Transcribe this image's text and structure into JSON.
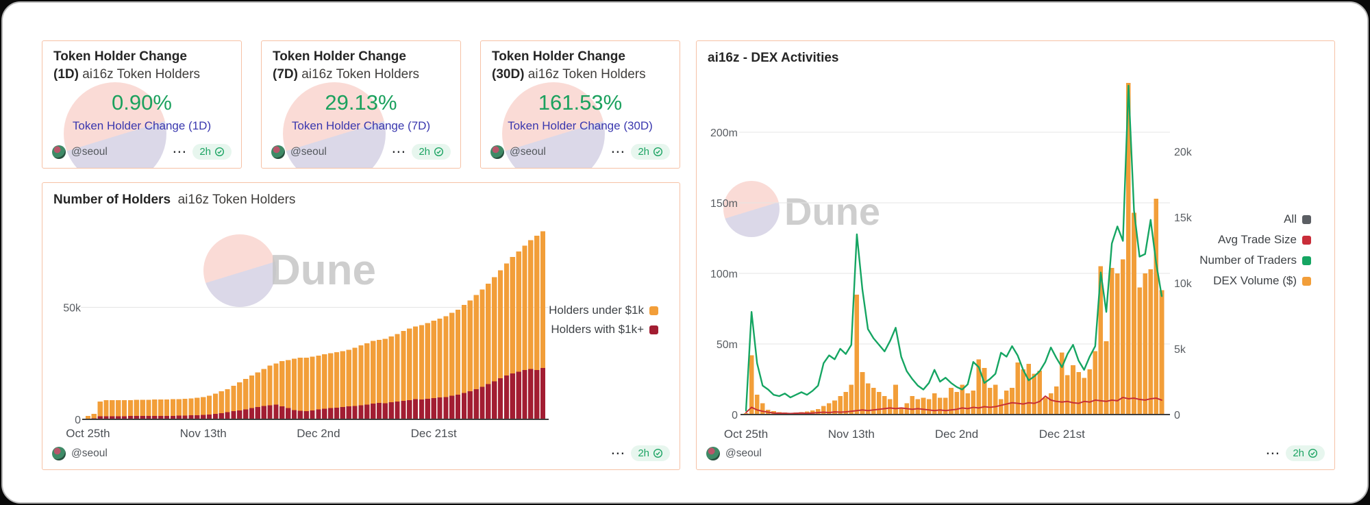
{
  "footer": {
    "user": "@seoul",
    "menu": "⋯",
    "badge": "2h"
  },
  "watermark": {
    "label": "Dune"
  },
  "cards": {
    "change_1d": {
      "title": "Token Holder Change",
      "period": "(1D)",
      "subtitle": "ai16z Token Holders",
      "value": "0.90%",
      "caption": "Token Holder Change (1D)"
    },
    "change_7d": {
      "title": "Token Holder Change",
      "period": "(7D)",
      "subtitle": "ai16z Token Holders",
      "value": "29.13%",
      "caption": "Token Holder Change (7D)"
    },
    "change_30d": {
      "title": "Token Holder Change",
      "period": "(30D)",
      "subtitle": "ai16z Token Holders",
      "value": "161.53%",
      "caption": "Token Holder Change (30D)"
    }
  },
  "holders_chart": {
    "title": "Number of Holders",
    "subtitle": "ai16z Token Holders"
  },
  "dex_chart": {
    "title": "ai16z - DEX Activities"
  },
  "colors": {
    "accent_border": "#f6c1a5",
    "positive_green": "#1ca15e",
    "caption_indigo": "#3937ae",
    "bar_orange": "#f29e39",
    "bar_maroon": "#a21d32",
    "line_green": "#15a562",
    "line_red": "#c62f35",
    "legend_gray": "#5b5e63",
    "badge_green": "#1ca463"
  },
  "chart_data": [
    {
      "type": "bar",
      "stacked": true,
      "title": "Number of Holders",
      "subtitle": "ai16z Token Holders",
      "x_tick_labels": [
        "Oct 25th",
        "Nov 13th",
        "Dec 2nd",
        "Dec 21st"
      ],
      "x_tick_indices": [
        0,
        19,
        38,
        57
      ],
      "y_axis": {
        "unit": "k",
        "ticks": [
          {
            "value": 50,
            "label": "50k"
          },
          {
            "value": 0,
            "label": "0"
          }
        ],
        "max": 85
      },
      "legend_position": "right",
      "grid": true,
      "series": [
        {
          "name": "Holders under $1k",
          "color": "#f29e39",
          "unit": "k",
          "values": [
            1.3,
            2.0,
            6.7,
            7.1,
            7.1,
            7.1,
            7.2,
            7.1,
            7.2,
            7.2,
            7.2,
            7.3,
            7.2,
            7.3,
            7.4,
            7.3,
            7.5,
            7.6,
            7.8,
            8.0,
            8.3,
            9.0,
            9.7,
            10.3,
            11.4,
            12.5,
            13.5,
            14.5,
            15.5,
            16.5,
            17.7,
            18.5,
            20.2,
            21.5,
            22.8,
            23.7,
            23.9,
            24.0,
            24.1,
            24.2,
            24.5,
            24.8,
            25.0,
            25.2,
            26.0,
            26.7,
            27.4,
            28.0,
            28.1,
            28.8,
            29.4,
            30.0,
            31.2,
            31.9,
            32.5,
            33.2,
            33.8,
            34.5,
            35.2,
            36.0,
            37.0,
            38.0,
            39.2,
            40.5,
            42.0,
            43.5,
            44.7,
            46.5,
            48.2,
            50.0,
            52.0,
            53.7,
            55.5,
            57.5,
            60.0,
            61.0
          ]
        },
        {
          "name": "Holders with $1k+",
          "color": "#a21d32",
          "unit": "k",
          "values": [
            0.2,
            0.5,
            1.3,
            1.4,
            1.4,
            1.4,
            1.4,
            1.5,
            1.5,
            1.5,
            1.5,
            1.5,
            1.6,
            1.6,
            1.6,
            1.7,
            1.7,
            1.8,
            1.9,
            2.0,
            2.2,
            2.5,
            2.8,
            3.2,
            3.6,
            4.0,
            4.5,
            5.0,
            5.5,
            6.0,
            6.3,
            6.5,
            5.8,
            5.0,
            4.2,
            3.8,
            3.6,
            4.0,
            4.4,
            4.8,
            5.0,
            5.2,
            5.5,
            5.8,
            6.0,
            6.3,
            6.6,
            7.0,
            7.4,
            7.2,
            7.6,
            8.0,
            8.3,
            8.6,
            9.0,
            8.8,
            9.2,
            9.5,
            9.8,
            10.0,
            10.5,
            11.0,
            11.8,
            12.5,
            13.5,
            14.5,
            15.8,
            17.0,
            18.3,
            19.5,
            20.5,
            21.3,
            22.0,
            22.5,
            22.0,
            23.0
          ]
        }
      ]
    },
    {
      "type": "combo",
      "title": "ai16z - DEX Activities",
      "x_tick_labels": [
        "Oct 25th",
        "Nov 13th",
        "Dec 2nd",
        "Dec 21st"
      ],
      "x_tick_indices": [
        0,
        19,
        38,
        57
      ],
      "left_axis": {
        "unit": "m",
        "ticks": [
          {
            "value": 200,
            "label": "200m"
          },
          {
            "value": 150,
            "label": "150m"
          },
          {
            "value": 100,
            "label": "100m"
          },
          {
            "value": 50,
            "label": "50m"
          },
          {
            "value": 0,
            "label": "0"
          }
        ],
        "max": 240
      },
      "right_axis": {
        "unit": "k",
        "ticks": [
          {
            "value": 20,
            "label": "20k"
          },
          {
            "value": 15,
            "label": "15k"
          },
          {
            "value": 10,
            "label": "10k"
          },
          {
            "value": 5,
            "label": "5k"
          },
          {
            "value": 0,
            "label": "0"
          }
        ],
        "max": 25
      },
      "legend_position": "right",
      "legend": [
        {
          "name": "All",
          "color": "#5b5e63"
        },
        {
          "name": "Avg Trade Size",
          "color": "#c92d39"
        },
        {
          "name": "Number of Traders",
          "color": "#15a562"
        },
        {
          "name": "DEX Volume ($)",
          "color": "#f29e39"
        }
      ],
      "series": [
        {
          "name": "DEX Volume ($)",
          "type": "bar",
          "axis": "left",
          "color": "#f29e39",
          "unit": "m ($ millions)",
          "values": [
            1,
            42,
            14,
            8,
            3.5,
            2.5,
            1.8,
            1.5,
            1.2,
            1.5,
            1.8,
            2.2,
            3,
            4,
            6,
            8,
            10,
            13,
            16,
            21,
            85,
            30,
            22,
            19,
            16,
            13,
            11,
            21,
            5,
            8,
            13,
            11,
            12,
            11,
            15,
            12,
            12,
            19,
            16,
            21,
            15,
            17,
            39,
            33,
            19,
            21,
            11,
            17,
            19,
            37,
            32,
            36,
            29,
            31,
            12,
            15,
            20,
            44,
            28,
            35,
            30,
            26,
            32,
            45,
            105,
            52,
            104,
            100,
            110,
            235,
            143,
            90,
            100,
            103,
            153,
            88
          ]
        },
        {
          "name": "Number of Traders",
          "type": "line",
          "axis": "right",
          "color": "#15a562",
          "unit": "k (thousands)",
          "values": [
            0.3,
            7.8,
            3.9,
            2.2,
            1.9,
            1.5,
            1.4,
            1.6,
            1.3,
            1.5,
            1.7,
            1.5,
            1.8,
            2.2,
            3.9,
            4.5,
            4.2,
            5.0,
            4.6,
            5.3,
            13.7,
            9.5,
            6.5,
            5.8,
            5.3,
            4.8,
            5.6,
            6.6,
            4.4,
            3.3,
            2.7,
            2.2,
            1.9,
            2.4,
            3.4,
            2.5,
            2.8,
            2.4,
            2.1,
            1.9,
            2.3,
            4.0,
            3.6,
            2.4,
            2.7,
            3.1,
            4.7,
            4.4,
            5.2,
            4.5,
            3.4,
            2.6,
            2.9,
            3.3,
            4.0,
            5.1,
            4.3,
            3.6,
            4.6,
            5.3,
            4.1,
            3.4,
            4.4,
            5.2,
            10.8,
            7.8,
            13.0,
            14.3,
            13.2,
            25.0,
            15.5,
            12.0,
            12.2,
            14.8,
            11.5,
            9.0
          ]
        },
        {
          "name": "Avg Trade Size",
          "type": "line",
          "axis": "right",
          "color": "#c62f35",
          "unit": "k ($ thousands)",
          "values": [
            0.15,
            0.55,
            0.35,
            0.25,
            0.18,
            0.12,
            0.1,
            0.1,
            0.08,
            0.1,
            0.12,
            0.1,
            0.12,
            0.15,
            0.18,
            0.15,
            0.2,
            0.18,
            0.2,
            0.25,
            0.3,
            0.35,
            0.3,
            0.35,
            0.4,
            0.45,
            0.5,
            0.45,
            0.5,
            0.45,
            0.4,
            0.45,
            0.4,
            0.35,
            0.3,
            0.35,
            0.3,
            0.35,
            0.4,
            0.5,
            0.45,
            0.55,
            0.5,
            0.6,
            0.55,
            0.6,
            0.7,
            0.8,
            0.9,
            0.85,
            0.8,
            0.9,
            0.85,
            1.0,
            1.4,
            1.1,
            1.0,
            0.95,
            1.0,
            0.9,
            0.85,
            1.0,
            0.95,
            1.1,
            1.05,
            1.0,
            1.1,
            1.05,
            1.3,
            1.2,
            1.25,
            1.15,
            1.1,
            1.2,
            1.25,
            1.1
          ]
        }
      ]
    }
  ]
}
